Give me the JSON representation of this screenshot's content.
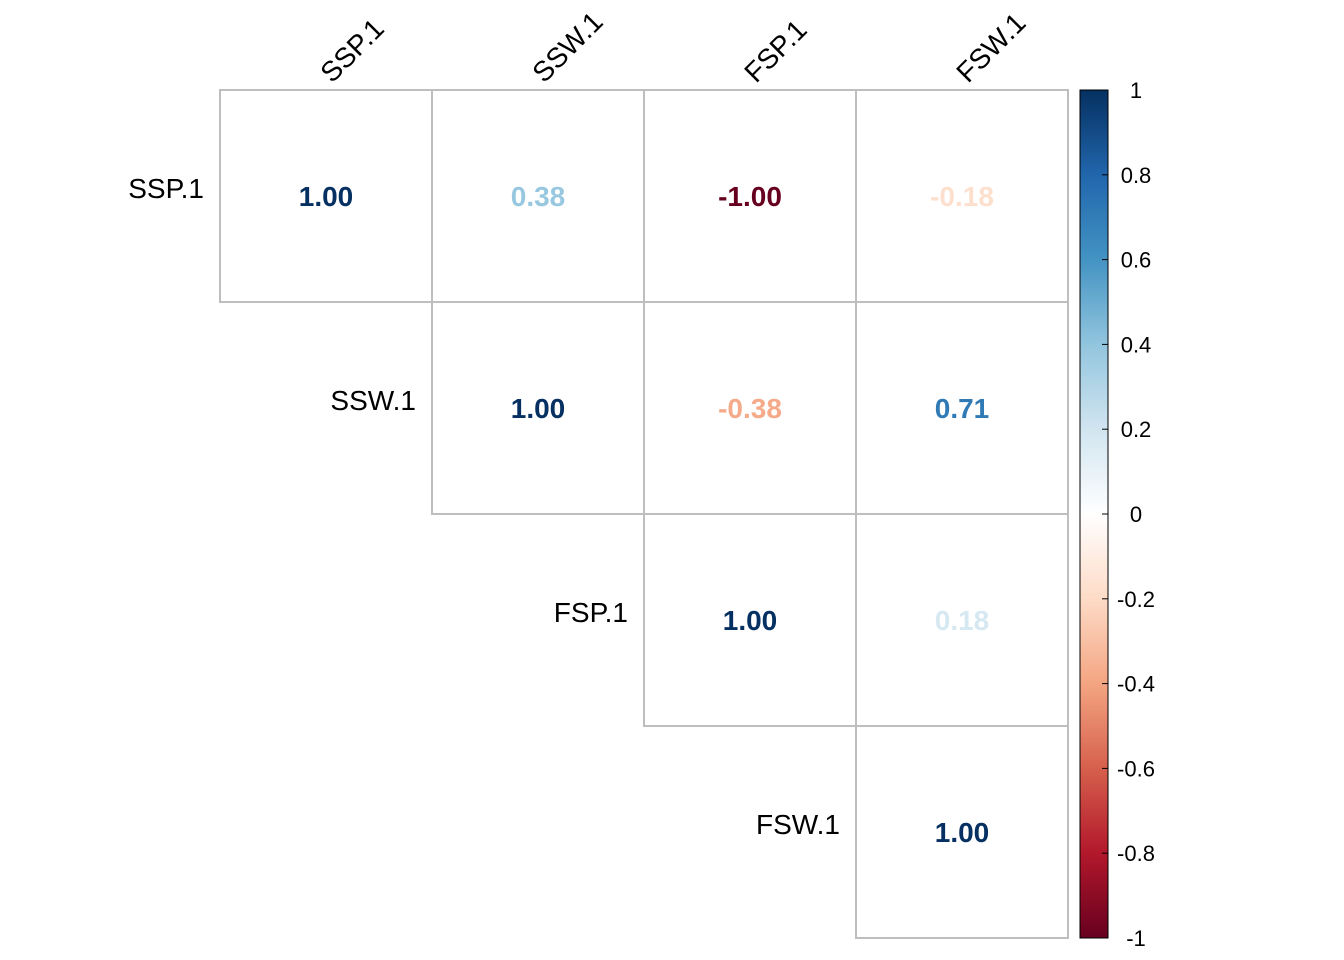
{
  "chart_data": {
    "type": "heatmap",
    "subtype": "correlation-matrix-upper",
    "variables": [
      "SSP.1",
      "SSW.1",
      "FSP.1",
      "FSW.1"
    ],
    "matrix": [
      [
        1.0,
        0.38,
        -1.0,
        -0.18
      ],
      [
        0.38,
        1.0,
        -0.38,
        0.71
      ],
      [
        -1.0,
        -0.38,
        1.0,
        0.18
      ],
      [
        -0.18,
        0.71,
        0.18,
        1.0
      ]
    ],
    "value_labels": [
      [
        "1.00",
        "0.38",
        "-1.00",
        "-0.18"
      ],
      [
        null,
        "1.00",
        "-0.38",
        "0.71"
      ],
      [
        null,
        null,
        "1.00",
        "0.18"
      ],
      [
        null,
        null,
        null,
        "1.00"
      ]
    ],
    "colorbar": {
      "range": [
        -1,
        1
      ],
      "ticks": [
        "1",
        "0.8",
        "0.6",
        "0.4",
        "0.2",
        "0",
        "-0.2",
        "-0.4",
        "-0.6",
        "-0.8",
        "-1"
      ],
      "tick_values": [
        1,
        0.8,
        0.6,
        0.4,
        0.2,
        0,
        -0.2,
        -0.4,
        -0.6,
        -0.8,
        -1
      ],
      "palette": [
        "#67001F",
        "#B2182B",
        "#D6604D",
        "#F4A582",
        "#FDDBC7",
        "#FFFFFF",
        "#D1E5F0",
        "#92C5DE",
        "#4393C3",
        "#2166AC",
        "#053061"
      ]
    },
    "grid_color": "#BEBEBE",
    "legend_position": "right"
  }
}
